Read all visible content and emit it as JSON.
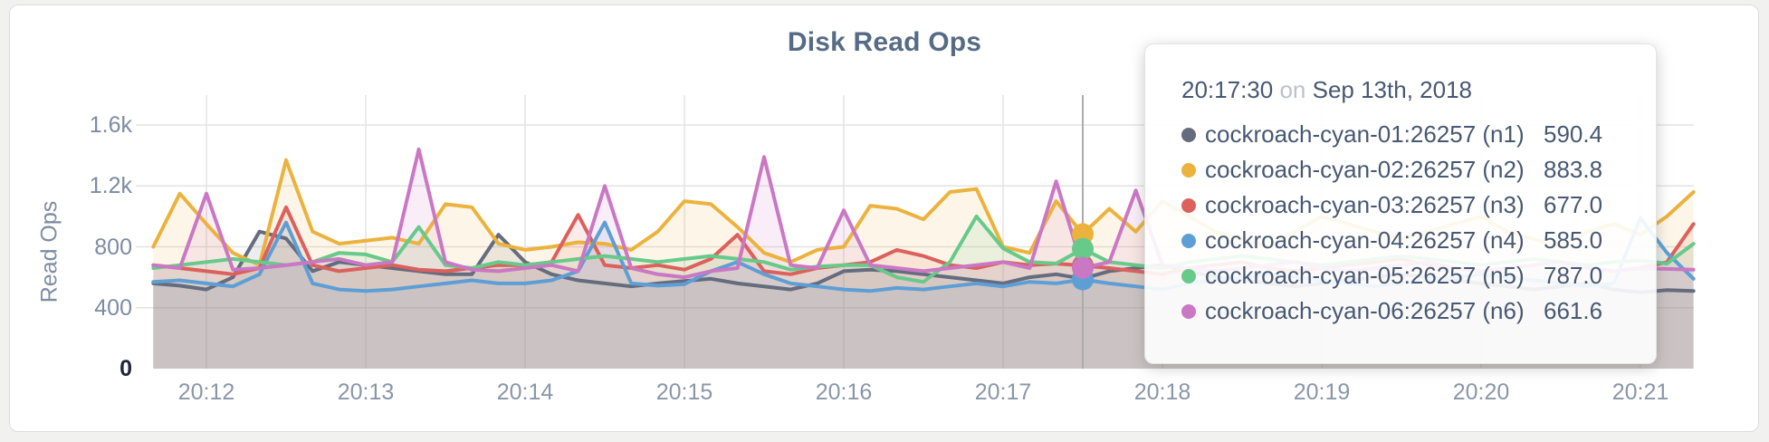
{
  "panel": {
    "title": "Disk Read Ops"
  },
  "colors": {
    "title_text": "#566b85",
    "axis_text": "#7d8ca2",
    "tooltip_text": "#475872",
    "crosshair": "#ababab"
  },
  "chart_data": {
    "type": "line",
    "title": "Disk Read Ops",
    "xlabel": "",
    "ylabel": "Read Ops",
    "x_start": "20:11:40",
    "x_step_seconds": 10,
    "x_tick_labels": [
      "20:12",
      "20:13",
      "20:14",
      "20:15",
      "20:16",
      "20:17",
      "20:18",
      "20:19",
      "20:20",
      "20:21"
    ],
    "y_ticks": [
      0,
      400,
      800,
      1200,
      1600
    ],
    "y_tick_labels": [
      "0",
      "400",
      "800",
      "1.2k",
      "1.6k"
    ],
    "ylim": [
      0,
      1800
    ],
    "grid": true,
    "legend_position": "tooltip",
    "highlight": {
      "index": 35,
      "time": "20:17:30",
      "date": "Sep 13th, 2018"
    },
    "series": [
      {
        "name": "cockroach-cyan-01:26257 (n1)",
        "short": "n1",
        "color": "#646c7d",
        "values": [
          560,
          545,
          520,
          600,
          900,
          855,
          640,
          700,
          680,
          660,
          640,
          620,
          620,
          880,
          700,
          620,
          580,
          560,
          540,
          560,
          575,
          590,
          560,
          540,
          520,
          560,
          640,
          650,
          640,
          620,
          600,
          580,
          560,
          600,
          620,
          590.4,
          640,
          660,
          680,
          640,
          600,
          580,
          560,
          540,
          560,
          580,
          600,
          620,
          600,
          580,
          560,
          540,
          520,
          540,
          560,
          520,
          500,
          516,
          510
        ]
      },
      {
        "name": "cockroach-cyan-02:26257 (n2)",
        "short": "n2",
        "color": "#ecb23e",
        "values": [
          800,
          1150,
          950,
          760,
          680,
          1370,
          900,
          820,
          840,
          860,
          820,
          1080,
          1060,
          820,
          780,
          800,
          830,
          820,
          780,
          900,
          1100,
          1080,
          930,
          760,
          700,
          780,
          800,
          1070,
          1050,
          980,
          1160,
          1180,
          800,
          760,
          1100,
          883.8,
          1050,
          900,
          1100,
          1000,
          900,
          850,
          800,
          900,
          1000,
          950,
          900,
          850,
          900,
          950,
          1000,
          900,
          850,
          800,
          900,
          950,
          880,
          1000,
          1160
        ]
      },
      {
        "name": "cockroach-cyan-03:26257 (n3)",
        "short": "n3",
        "color": "#dc605c",
        "values": [
          680,
          660,
          640,
          620,
          660,
          1060,
          680,
          640,
          660,
          680,
          650,
          640,
          660,
          680,
          680,
          700,
          1010,
          680,
          660,
          680,
          650,
          720,
          880,
          640,
          620,
          660,
          680,
          700,
          780,
          740,
          680,
          660,
          700,
          680,
          690,
          677,
          660,
          640,
          620,
          660,
          680,
          700,
          660,
          640,
          660,
          680,
          700,
          720,
          680,
          660,
          640,
          660,
          680,
          700,
          660,
          640,
          660,
          700,
          950
        ]
      },
      {
        "name": "cockroach-cyan-04:26257 (n4)",
        "short": "n4",
        "color": "#5d9fd5",
        "values": [
          570,
          580,
          560,
          540,
          620,
          960,
          560,
          520,
          510,
          520,
          540,
          560,
          580,
          560,
          560,
          580,
          640,
          960,
          560,
          545,
          555,
          640,
          700,
          620,
          560,
          540,
          520,
          510,
          530,
          520,
          540,
          560,
          540,
          570,
          560,
          585,
          560,
          540,
          520,
          560,
          580,
          600,
          620,
          600,
          580,
          560,
          540,
          560,
          580,
          600,
          620,
          600,
          580,
          560,
          540,
          560,
          990,
          760,
          590
        ]
      },
      {
        "name": "cockroach-cyan-05:26257 (n5)",
        "short": "n5",
        "color": "#67c98a",
        "values": [
          660,
          680,
          700,
          720,
          700,
          680,
          700,
          760,
          750,
          700,
          930,
          680,
          660,
          700,
          680,
          700,
          720,
          740,
          720,
          700,
          720,
          740,
          720,
          700,
          650,
          670,
          680,
          680,
          600,
          570,
          700,
          1000,
          790,
          700,
          690,
          787,
          700,
          680,
          660,
          700,
          720,
          740,
          720,
          700,
          680,
          700,
          720,
          740,
          720,
          700,
          680,
          700,
          720,
          700,
          680,
          700,
          711,
          690,
          820
        ]
      },
      {
        "name": "cockroach-cyan-06:26257 (n6)",
        "short": "n6",
        "color": "#ca77c4",
        "values": [
          680,
          660,
          1150,
          650,
          660,
          680,
          700,
          720,
          680,
          700,
          1440,
          700,
          650,
          640,
          660,
          680,
          640,
          1200,
          660,
          620,
          600,
          640,
          660,
          1390,
          680,
          660,
          1040,
          680,
          660,
          640,
          660,
          680,
          700,
          660,
          1230,
          661.6,
          700,
          1170,
          680,
          660,
          640,
          660,
          680,
          700,
          660,
          640,
          660,
          680,
          700,
          660,
          640,
          660,
          680,
          700,
          660,
          640,
          658,
          655,
          650
        ]
      }
    ]
  },
  "tooltip": {
    "time": "20:17:30",
    "connector": "on",
    "date": "Sep 13th, 2018",
    "rows": [
      {
        "label": "cockroach-cyan-01:26257 (n1)",
        "value": "590.4",
        "color": "#646c7d"
      },
      {
        "label": "cockroach-cyan-02:26257 (n2)",
        "value": "883.8",
        "color": "#ecb23e"
      },
      {
        "label": "cockroach-cyan-03:26257 (n3)",
        "value": "677.0",
        "color": "#dc605c"
      },
      {
        "label": "cockroach-cyan-04:26257 (n4)",
        "value": "585.0",
        "color": "#5d9fd5"
      },
      {
        "label": "cockroach-cyan-05:26257 (n5)",
        "value": "787.0",
        "color": "#67c98a"
      },
      {
        "label": "cockroach-cyan-06:26257 (n6)",
        "value": "661.6",
        "color": "#ca77c4"
      }
    ]
  }
}
